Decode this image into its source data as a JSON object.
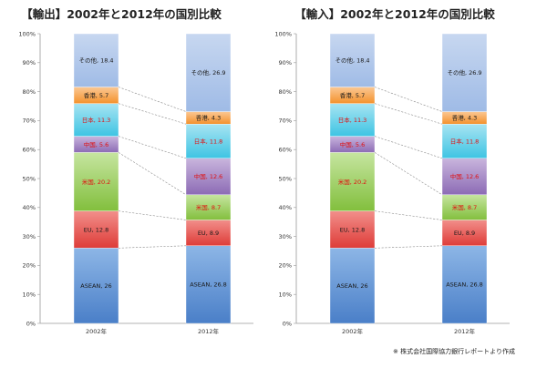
{
  "source_note": "※ 株式会社国際協力銀行レポートより作成",
  "colors": {
    "ASEAN": [
      "#8db6e6",
      "#4a7fc8"
    ],
    "EU": [
      "#f28f8b",
      "#de3c38"
    ],
    "米国": [
      "#c6e5a0",
      "#82bf3d"
    ],
    "中国": [
      "#c9b5dd",
      "#8c6bb5"
    ],
    "日本": [
      "#a7e4f2",
      "#3ec4e3"
    ],
    "香港": [
      "#fbc894",
      "#f4912c"
    ],
    "その他": [
      "#c7d7f0",
      "#9fbbe6"
    ]
  },
  "label_colors": {
    "ASEAN": "#1a1a1a",
    "EU": "#1a1a1a",
    "米国": "#e01010",
    "中国": "#e01010",
    "日本": "#e01010",
    "香港": "#1a1a1a",
    "その他": "#1a1a1a"
  },
  "chart_data": [
    {
      "type": "bar",
      "stacked": true,
      "title": "【輸出】2002年と2012年の国別比較",
      "categories": [
        "2002年",
        "2012年"
      ],
      "ylim": [
        0,
        100
      ],
      "y_ticks": [
        "0%",
        "10%",
        "20%",
        "30%",
        "40%",
        "50%",
        "60%",
        "70%",
        "80%",
        "90%",
        "100%"
      ],
      "series": [
        {
          "name": "ASEAN",
          "values": [
            26,
            26.8
          ],
          "labels": [
            "ASEAN, 26",
            "ASEAN, 26.8"
          ]
        },
        {
          "name": "EU",
          "values": [
            12.8,
            8.9
          ],
          "labels": [
            "EU, 12.8",
            "EU, 8.9"
          ]
        },
        {
          "name": "米国",
          "values": [
            20.2,
            8.7
          ],
          "labels": [
            "米国, 20.2",
            "米国, 8.7"
          ]
        },
        {
          "name": "中国",
          "values": [
            5.6,
            12.6
          ],
          "labels": [
            "中国, 5.6",
            "中国, 12.6"
          ]
        },
        {
          "name": "日本",
          "values": [
            11.3,
            11.8
          ],
          "labels": [
            "日本, 11.3",
            "日本, 11.8"
          ]
        },
        {
          "name": "香港",
          "values": [
            5.7,
            4.3
          ],
          "labels": [
            "香港, 5.7",
            "香港, 4.3"
          ]
        },
        {
          "name": "その他",
          "values": [
            18.4,
            26.9
          ],
          "labels": [
            "その他, 18.4",
            "その他, 26.9"
          ]
        }
      ]
    },
    {
      "type": "bar",
      "stacked": true,
      "title": "【輸入】2002年と2012年の国別比較",
      "categories": [
        "2002年",
        "2012年"
      ],
      "ylim": [
        0,
        100
      ],
      "y_ticks": [
        "0%",
        "10%",
        "20%",
        "30%",
        "40%",
        "50%",
        "60%",
        "70%",
        "80%",
        "90%",
        "100%"
      ],
      "series": [
        {
          "name": "ASEAN",
          "values": [
            26,
            26.8
          ],
          "labels": [
            "ASEAN, 26",
            "ASEAN, 26.8"
          ]
        },
        {
          "name": "EU",
          "values": [
            12.8,
            8.9
          ],
          "labels": [
            "EU, 12.8",
            "EU, 8.9"
          ]
        },
        {
          "name": "米国",
          "values": [
            20.2,
            8.7
          ],
          "labels": [
            "米国, 20.2",
            "米国, 8.7"
          ]
        },
        {
          "name": "中国",
          "values": [
            5.6,
            12.6
          ],
          "labels": [
            "中国, 5.6",
            "中国, 12.6"
          ]
        },
        {
          "name": "日本",
          "values": [
            11.3,
            11.8
          ],
          "labels": [
            "日本, 11.3",
            "日本, 11.8"
          ]
        },
        {
          "name": "香港",
          "values": [
            5.7,
            4.3
          ],
          "labels": [
            "香港, 5.7",
            "香港, 4.3"
          ]
        },
        {
          "name": "その他",
          "values": [
            18.4,
            26.9
          ],
          "labels": [
            "その他, 18.4",
            "その他, 26.9"
          ]
        }
      ]
    }
  ]
}
